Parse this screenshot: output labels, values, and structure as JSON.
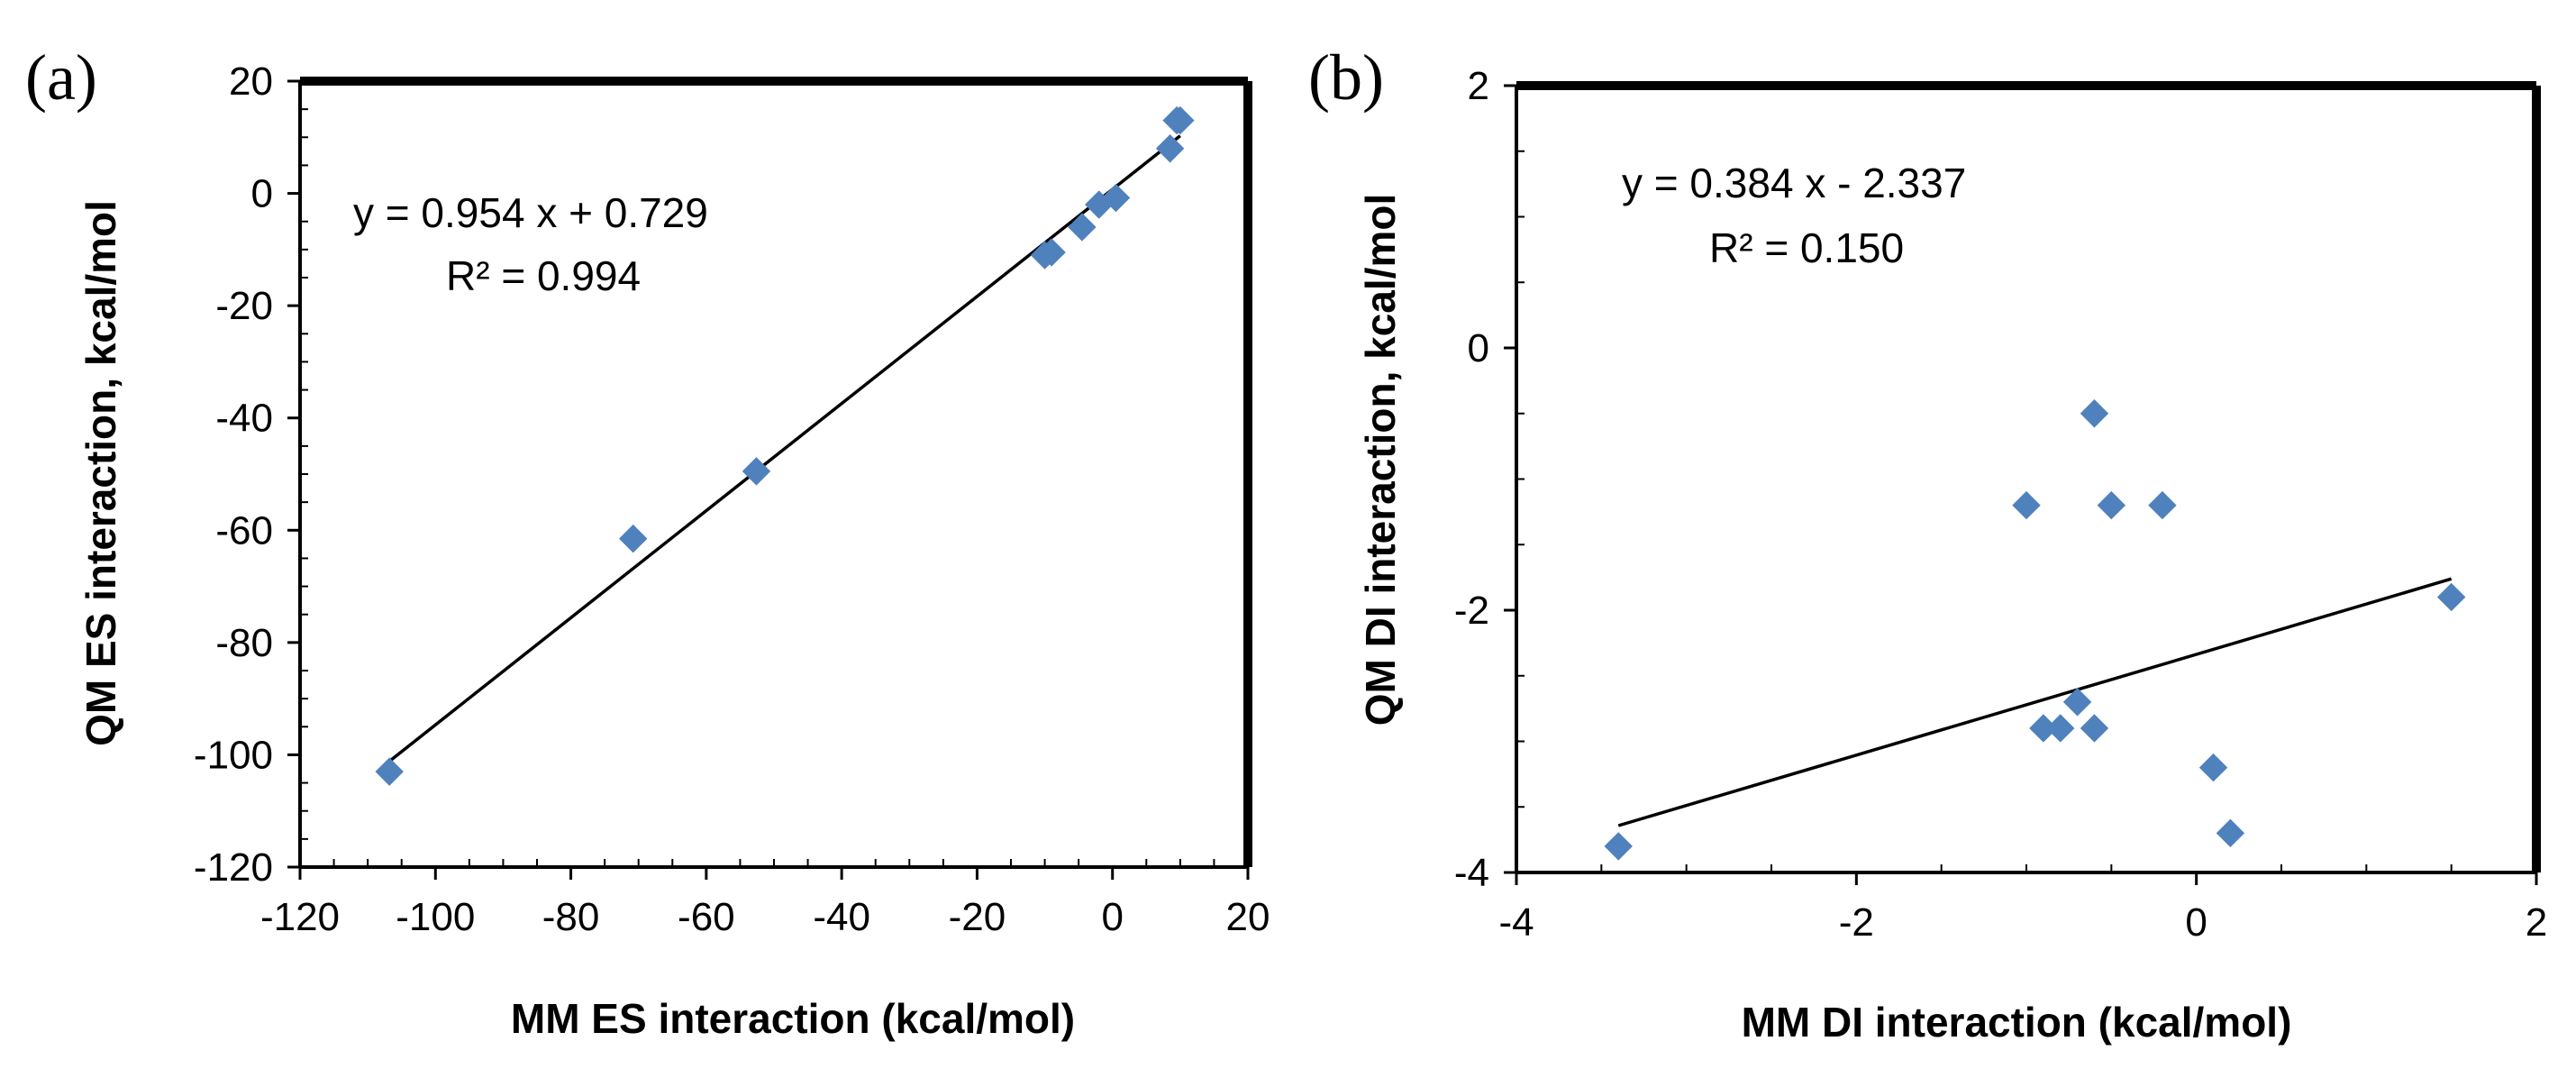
{
  "chart_data": [
    {
      "type": "scatter",
      "panel_label": "(a)",
      "xlabel": "MM ES interaction (kcal/mol)",
      "ylabel": "QM ES interaction, kcal/mol",
      "xlim": [
        -120,
        20
      ],
      "ylim": [
        -120,
        20
      ],
      "xticks": [
        -120,
        -100,
        -80,
        -60,
        -40,
        -20,
        0,
        20
      ],
      "yticks": [
        -120,
        -100,
        -80,
        -60,
        -40,
        -20,
        0,
        20
      ],
      "xtick_labels": [
        "-120",
        "-100",
        "-80",
        "-60",
        "-40",
        "-20",
        "0",
        "20"
      ],
      "ytick_labels": [
        "-120",
        "-100",
        "-80",
        "-60",
        "-40",
        "-20",
        "0",
        "20"
      ],
      "grid": false,
      "points": [
        {
          "x": -106.8,
          "y": -103.0
        },
        {
          "x": -70.8,
          "y": -61.5
        },
        {
          "x": -52.6,
          "y": -49.5
        },
        {
          "x": -10.0,
          "y": -11.0
        },
        {
          "x": -9.0,
          "y": -10.5
        },
        {
          "x": -4.5,
          "y": -6.0
        },
        {
          "x": -2.0,
          "y": -2.0
        },
        {
          "x": 0.5,
          "y": -0.8
        },
        {
          "x": 8.5,
          "y": 8.0
        },
        {
          "x": 9.5,
          "y": 13.0
        },
        {
          "x": 10.0,
          "y": 13.0
        }
      ],
      "trendline": {
        "slope": 0.954,
        "intercept": 0.729,
        "x_range": [
          -106.8,
          10.0
        ]
      },
      "equation_text": "y = 0.954 x + 0.729",
      "r2_text": "R² = 0.994",
      "marker_color": "#4f81bd"
    },
    {
      "type": "scatter",
      "panel_label": "(b)",
      "xlabel": "MM DI interaction (kcal/mol)",
      "ylabel": "QM DI interaction, kcal/mol",
      "xlim": [
        -4,
        2
      ],
      "ylim": [
        -4,
        2
      ],
      "xticks": [
        -4,
        -2,
        0,
        2
      ],
      "yticks": [
        -4,
        -2,
        0,
        2
      ],
      "xtick_labels": [
        "-4",
        "-2",
        "0",
        "2"
      ],
      "ytick_labels": [
        "-4",
        "-2",
        "0",
        "2"
      ],
      "grid": false,
      "points": [
        {
          "x": -3.4,
          "y": -3.8
        },
        {
          "x": -1.0,
          "y": -1.2
        },
        {
          "x": -0.9,
          "y": -2.9
        },
        {
          "x": -0.8,
          "y": -2.9
        },
        {
          "x": -0.7,
          "y": -2.7
        },
        {
          "x": -0.6,
          "y": -0.5
        },
        {
          "x": -0.6,
          "y": -2.9
        },
        {
          "x": -0.5,
          "y": -1.2
        },
        {
          "x": -0.2,
          "y": -1.2
        },
        {
          "x": 0.1,
          "y": -3.2
        },
        {
          "x": 0.2,
          "y": -3.7
        },
        {
          "x": 1.5,
          "y": -1.9
        }
      ],
      "trendline": {
        "slope": 0.384,
        "intercept": -2.337,
        "x_range": [
          -3.4,
          1.5
        ]
      },
      "equation_text": "y = 0.384 x - 2.337",
      "r2_text": "R² = 0.150",
      "marker_color": "#4f81bd"
    }
  ]
}
